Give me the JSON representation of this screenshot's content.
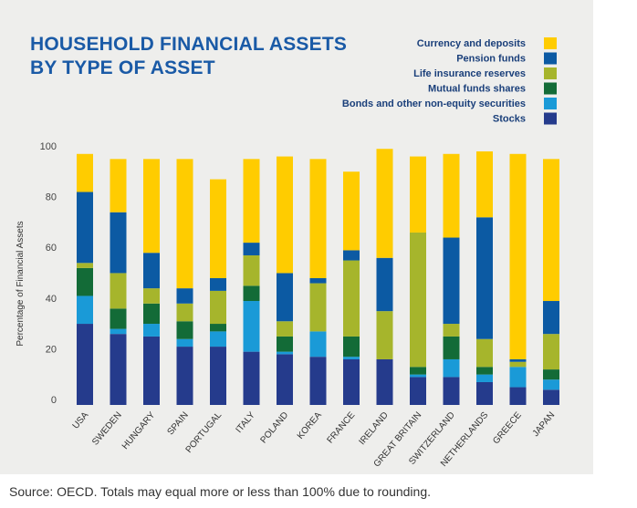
{
  "chart_data": {
    "type": "bar",
    "stacked": true,
    "title": "HOUSEHOLD FINANCIAL ASSETS BY TYPE OF ASSET",
    "title_lines": [
      "HOUSEHOLD FINANCIAL ASSETS",
      "BY TYPE OF ASSET"
    ],
    "ylabel": "Percentage of Financial Assets",
    "xlabel": "",
    "ylim": [
      0,
      100
    ],
    "yticks": [
      0,
      20,
      40,
      60,
      80,
      100
    ],
    "grid": false,
    "legend_position": "top-right",
    "categories": [
      "USA",
      "SWEDEN",
      "HUNGARY",
      "SPAIN",
      "PORTUGAL",
      "ITALY",
      "POLAND",
      "KOREA",
      "FRANCE",
      "IRELAND",
      "GREAT BRITAIN",
      "SWITZERLAND",
      "NETHERLANDS",
      "GREECE",
      "JAPAN"
    ],
    "series": [
      {
        "name": "Stocks",
        "color": "#253b8c",
        "values": [
          32,
          28,
          27,
          23,
          23,
          21,
          20,
          19,
          18,
          18,
          11,
          11,
          9,
          7,
          6
        ]
      },
      {
        "name": "Bonds and other non-equity securities",
        "color": "#1a9ad7",
        "values": [
          11,
          2,
          5,
          3,
          6,
          20,
          1,
          10,
          1,
          0,
          1,
          7,
          3,
          8,
          4
        ]
      },
      {
        "name": "Mutual funds shares",
        "color": "#136b37",
        "values": [
          11,
          8,
          8,
          7,
          3,
          6,
          6,
          0,
          8,
          0,
          3,
          9,
          3,
          0,
          4
        ]
      },
      {
        "name": "Life insurance reserves",
        "color": "#a6b52c",
        "values": [
          2,
          14,
          6,
          7,
          13,
          12,
          6,
          19,
          30,
          19,
          53,
          5,
          11,
          2,
          14
        ]
      },
      {
        "name": "Pension funds",
        "color": "#0c5aa3",
        "values": [
          28,
          24,
          14,
          6,
          5,
          5,
          19,
          2,
          4,
          21,
          0,
          34,
          48,
          1,
          13
        ]
      },
      {
        "name": "Currency and deposits",
        "color": "#ffcc00",
        "values": [
          15,
          21,
          37,
          51,
          39,
          33,
          46,
          47,
          31,
          43,
          30,
          33,
          26,
          81,
          56
        ]
      }
    ]
  },
  "legend_order": [
    "Currency and deposits",
    "Pension funds",
    "Life insurance reserves",
    "Mutual funds shares",
    "Bonds and other non-equity securities",
    "Stocks"
  ],
  "source_note": "Source: OECD. Totals may equal more or less than 100% due to rounding."
}
